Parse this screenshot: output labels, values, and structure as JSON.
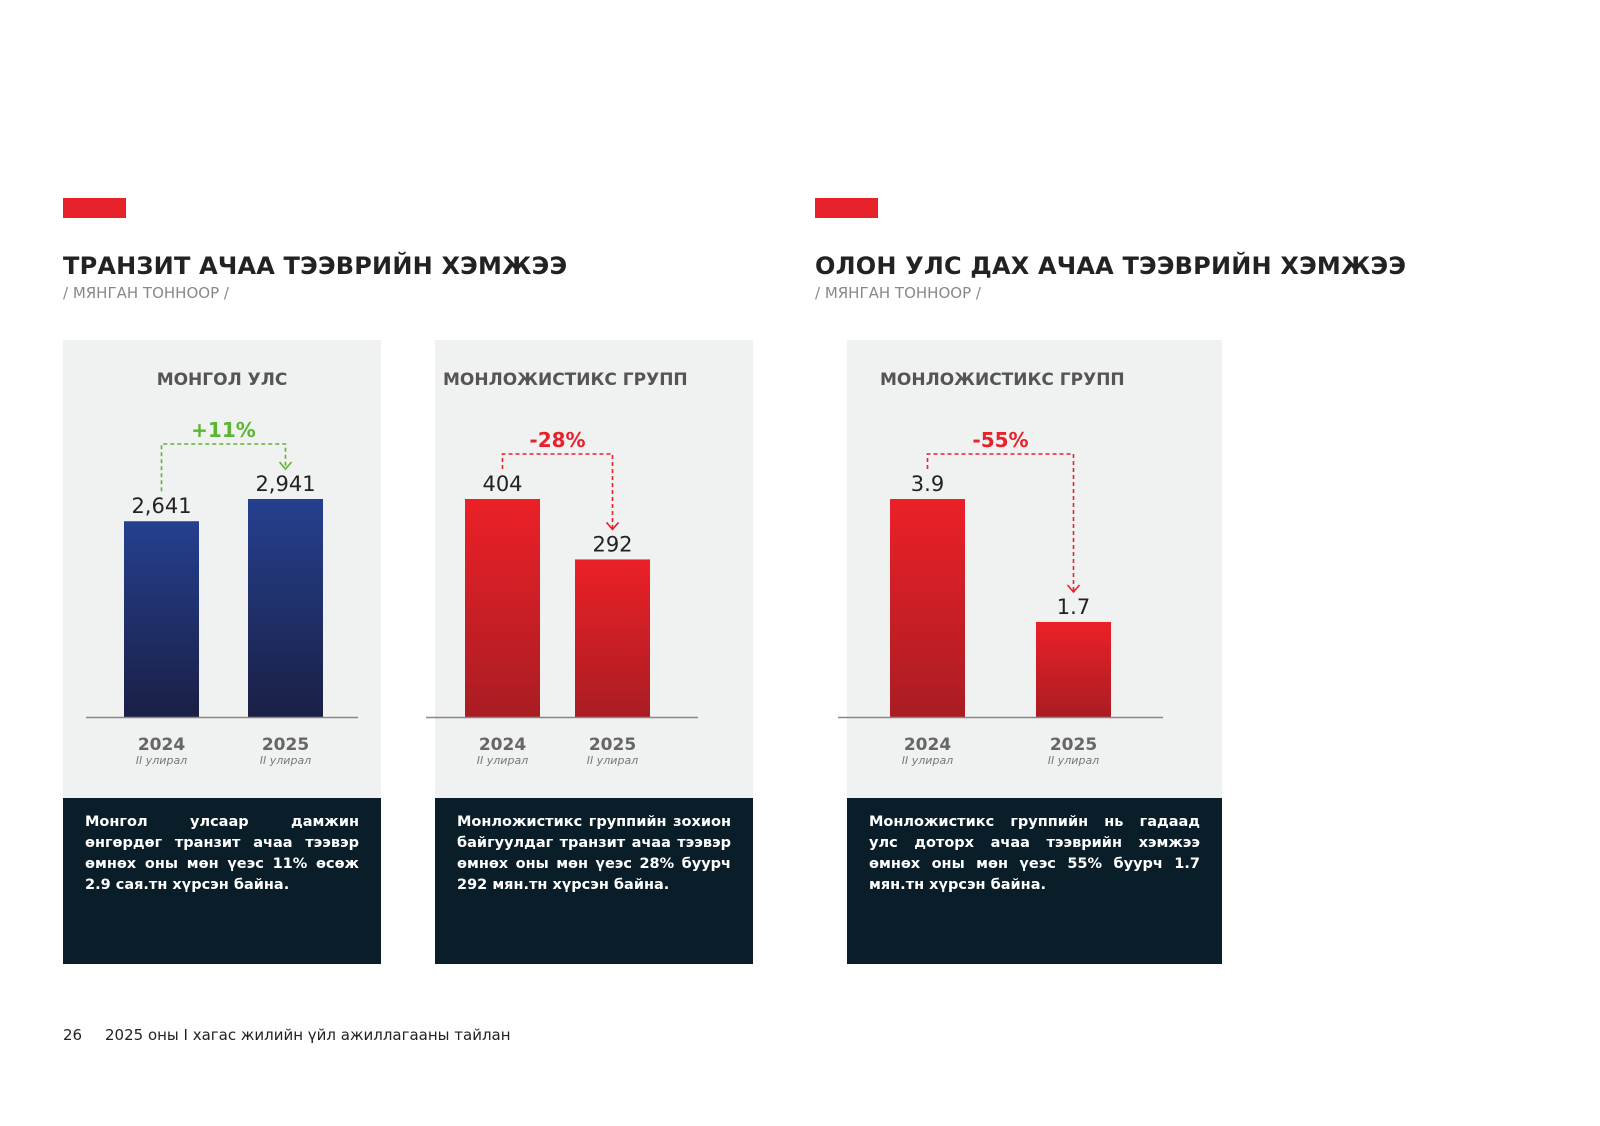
{
  "sections": [
    {
      "title": "ТРАНЗИТ АЧАА ТЭЭВРИЙН ХЭМЖЭЭ",
      "subtitle": "/ МЯНГАН ТОННООР /"
    },
    {
      "title": "ОЛОН УЛС ДАХ АЧАА ТЭЭВРИЙН ХЭМЖЭЭ",
      "subtitle": "/ МЯНГАН ТОННООР /"
    }
  ],
  "chart_data": [
    {
      "type": "bar",
      "title": "МОНГОЛ УЛС",
      "categories": [
        "2024",
        "2025"
      ],
      "category_sublabels": [
        "II улирал",
        "II улирал"
      ],
      "values": [
        2641,
        2941
      ],
      "value_labels": [
        "2,641",
        "2,941"
      ],
      "change_label": "+11%",
      "change_color": "#5cb531",
      "bar_colors": [
        "#25408f",
        "#1a1f45"
      ],
      "description": "Монгол улсаар дамжин өнгөрдөг транзит ачаа тээвэр өмнөх оны мөн үеэс 11% өсөж 2.9 сая.тн хүрсэн байна."
    },
    {
      "type": "bar",
      "title": "МОНЛОЖИСТИКС ГРУПП",
      "categories": [
        "2024",
        "2025"
      ],
      "category_sublabels": [
        "II улирал",
        "II улирал"
      ],
      "values": [
        404,
        292
      ],
      "value_labels": [
        "404",
        "292"
      ],
      "change_label": "-28%",
      "change_color": "#e8222a",
      "bar_colors": [
        "#ec2027",
        "#a91d23"
      ],
      "description": "Монложистикс группийн зохион байгуулдаг транзит ачаа тээвэр өмнөх оны мөн үеэс 28% буурч 292 мян.тн хүрсэн байна."
    },
    {
      "type": "bar",
      "title": "МОНЛОЖИСТИКС ГРУПП",
      "categories": [
        "2024",
        "2025"
      ],
      "category_sublabels": [
        "II улирал",
        "II улирал"
      ],
      "values": [
        3.9,
        1.7
      ],
      "value_labels": [
        "3.9",
        "1.7"
      ],
      "change_label": "-55%",
      "change_color": "#e8222a",
      "bar_colors": [
        "#ec2027",
        "#a91d23"
      ],
      "description": "Монложистикс группийн нь гадаад улс доторх ачаа тээврийн хэмжээ өмнөх оны мөн үеэс 55% буурч 1.7 мян.тн хүрсэн байна."
    }
  ],
  "footer": {
    "page": "26",
    "text": "2025 оны I хагас жилийн үйл ажиллагааны тайлан"
  }
}
